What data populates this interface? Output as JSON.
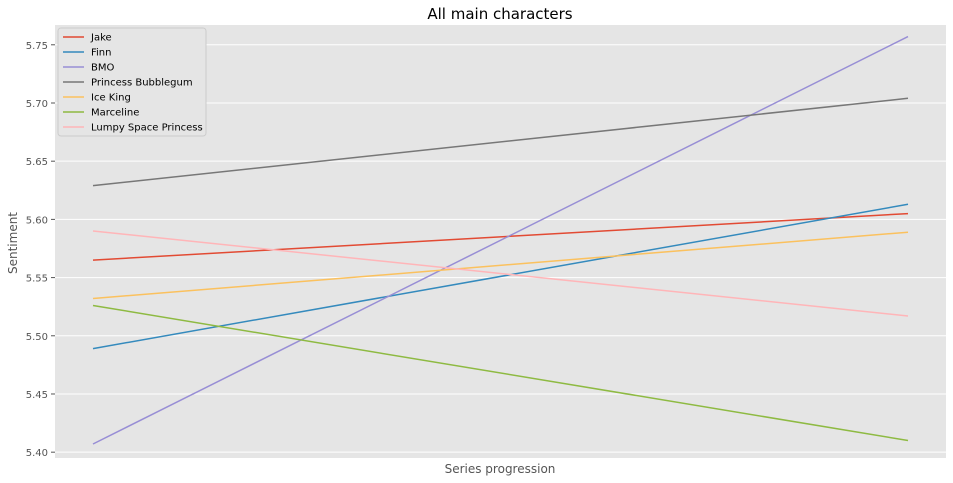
{
  "chart_data": {
    "type": "line",
    "title": "All main characters",
    "xlabel": "Series progression",
    "ylabel": "Sentiment",
    "x": [
      0,
      1
    ],
    "ylim": [
      5.395,
      5.767
    ],
    "yticks": [
      5.4,
      5.45,
      5.5,
      5.55,
      5.6,
      5.65,
      5.7,
      5.75
    ],
    "ytick_labels": [
      "5.40",
      "5.45",
      "5.50",
      "5.55",
      "5.60",
      "5.65",
      "5.70",
      "5.75"
    ],
    "grid": true,
    "legend_position": "top-left",
    "series": [
      {
        "name": "Jake",
        "color": "#E24A33",
        "values": [
          5.565,
          5.605
        ]
      },
      {
        "name": "Finn",
        "color": "#348ABD",
        "values": [
          5.489,
          5.613
        ]
      },
      {
        "name": "BMO",
        "color": "#988ED5",
        "values": [
          5.407,
          5.757
        ]
      },
      {
        "name": "Princess Bubblegum",
        "color": "#777777",
        "values": [
          5.629,
          5.704
        ]
      },
      {
        "name": "Ice King",
        "color": "#FBC15E",
        "values": [
          5.532,
          5.589
        ]
      },
      {
        "name": "Marceline",
        "color": "#8EBA42",
        "values": [
          5.526,
          5.41
        ]
      },
      {
        "name": "Lumpy Space Princess",
        "color": "#FFB5B8",
        "values": [
          5.59,
          5.517
        ]
      }
    ]
  },
  "style": {
    "plot_background": "#E5E5E5",
    "grid_color": "#FFFFFF",
    "text_color": "#555555"
  }
}
